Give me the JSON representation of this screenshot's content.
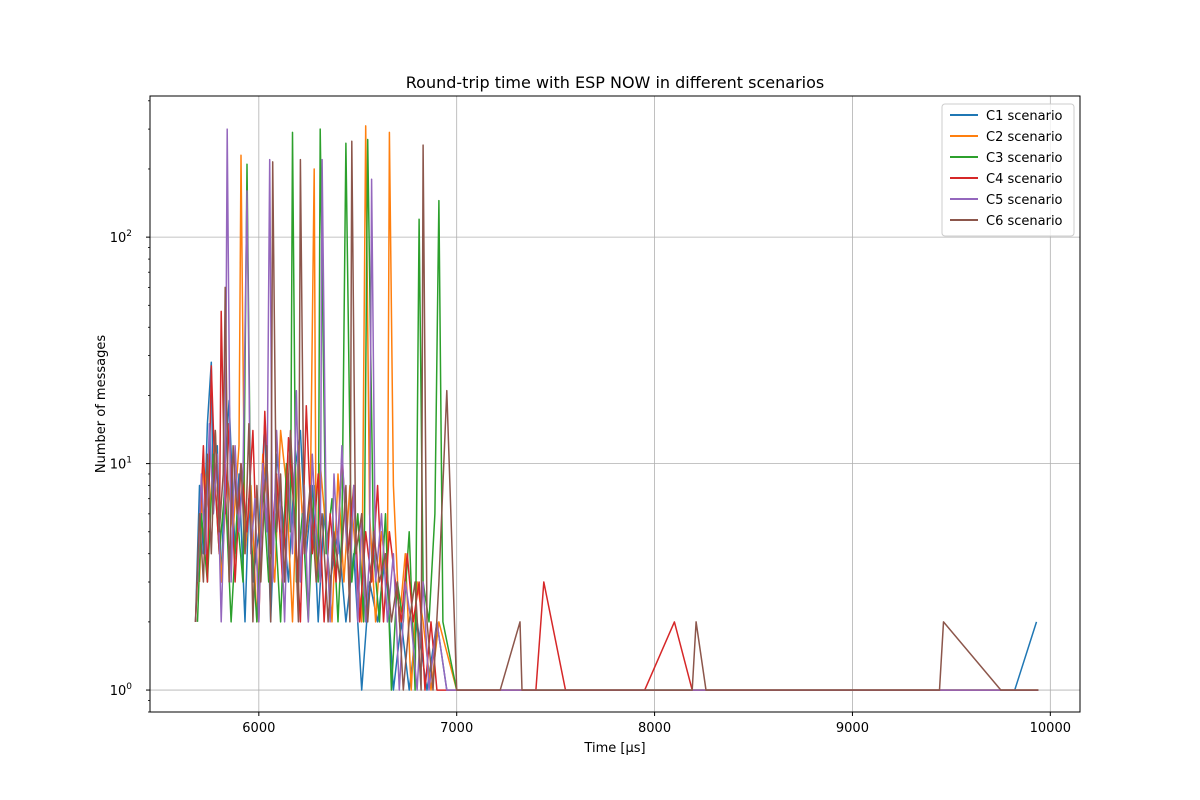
{
  "chart_data": {
    "type": "line",
    "title": "Round-trip time with ESP NOW in different scenarios",
    "xlabel": "Time [µs]",
    "ylabel": "Number of messages",
    "xlim": [
      5450,
      10150
    ],
    "ylim": [
      0.8,
      420
    ],
    "yscale": "log",
    "grid": true,
    "legend_position": "top-right",
    "xticks": [
      6000,
      7000,
      8000,
      9000,
      10000
    ],
    "xtick_labels": [
      "6000",
      "7000",
      "8000",
      "9000",
      "10000"
    ],
    "yticks": [
      {
        "value": 1,
        "base": "10",
        "exp": "0"
      },
      {
        "value": 10,
        "base": "10",
        "exp": "1"
      },
      {
        "value": 100,
        "base": "10",
        "exp": "2"
      }
    ],
    "series": [
      {
        "name": "C1 scenario",
        "color": "#1f77b4",
        "x": [
          5680,
          5700,
          5720,
          5740,
          5760,
          5770,
          5790,
          5810,
          5830,
          5850,
          5880,
          5900,
          5930,
          5950,
          5970,
          6000,
          6030,
          6060,
          6090,
          6120,
          6150,
          6180,
          6210,
          6240,
          6270,
          6300,
          6330,
          6360,
          6400,
          6440,
          6480,
          6520,
          6560,
          6600,
          6640,
          6680,
          6720,
          6760,
          6800,
          6850,
          6900,
          6950,
          7000,
          7500,
          8000,
          8500,
          9000,
          9500,
          9820,
          9930
        ],
        "y": [
          2,
          8,
          4,
          15,
          28,
          6,
          12,
          3,
          10,
          19,
          4,
          9,
          2,
          7,
          3,
          5,
          15,
          2,
          11,
          6,
          3,
          9,
          14,
          4,
          8,
          2,
          6,
          3,
          5,
          2,
          4,
          1,
          3,
          2,
          4,
          1,
          2,
          1,
          2,
          1,
          2,
          1,
          1,
          1,
          1,
          1,
          1,
          1,
          1,
          2
        ]
      },
      {
        "name": "C2 scenario",
        "color": "#ff7f0e",
        "x": [
          5700,
          5720,
          5750,
          5780,
          5810,
          5840,
          5870,
          5900,
          5910,
          5930,
          5960,
          5990,
          6020,
          6050,
          6080,
          6110,
          6140,
          6170,
          6200,
          6230,
          6260,
          6280,
          6290,
          6310,
          6340,
          6370,
          6400,
          6430,
          6460,
          6490,
          6520,
          6540,
          6560,
          6590,
          6620,
          6650,
          6660,
          6680,
          6710,
          6740,
          6770,
          6800,
          6830,
          6870,
          6910,
          7000,
          7500,
          8000,
          8500,
          9000,
          9500,
          9940
        ],
        "y": [
          3,
          10,
          6,
          14,
          3,
          9,
          5,
          12,
          230,
          4,
          8,
          2,
          11,
          6,
          3,
          14,
          8,
          2,
          12,
          4,
          7,
          200,
          3,
          10,
          5,
          2,
          9,
          3,
          8,
          4,
          2,
          310,
          6,
          2,
          5,
          3,
          290,
          8,
          2,
          4,
          1,
          3,
          2,
          1,
          2,
          1,
          1,
          1,
          1,
          1,
          1,
          1
        ]
      },
      {
        "name": "C3 scenario",
        "color": "#2ca02c",
        "x": [
          5690,
          5710,
          5740,
          5770,
          5800,
          5830,
          5860,
          5890,
          5920,
          5940,
          5960,
          5990,
          6020,
          6050,
          6080,
          6110,
          6140,
          6160,
          6170,
          6190,
          6220,
          6250,
          6280,
          6300,
          6310,
          6340,
          6370,
          6400,
          6420,
          6440,
          6470,
          6500,
          6530,
          6550,
          6580,
          6610,
          6640,
          6670,
          6700,
          6730,
          6760,
          6790,
          6810,
          6830,
          6860,
          6890,
          6910,
          6930,
          7000,
          7500,
          8000,
          8500,
          9000,
          9500,
          9940
        ],
        "y": [
          2,
          6,
          3,
          11,
          4,
          8,
          2,
          6,
          3,
          210,
          5,
          2,
          8,
          3,
          6,
          2,
          10,
          5,
          290,
          3,
          6,
          2,
          8,
          3,
          300,
          4,
          7,
          2,
          5,
          260,
          3,
          6,
          2,
          270,
          4,
          2,
          6,
          1,
          3,
          2,
          5,
          1,
          120,
          3,
          2,
          6,
          145,
          2,
          1,
          1,
          1,
          1,
          1,
          1,
          1
        ]
      },
      {
        "name": "C4 scenario",
        "color": "#d62728",
        "x": [
          5680,
          5700,
          5720,
          5740,
          5760,
          5780,
          5800,
          5810,
          5830,
          5850,
          5880,
          5910,
          5940,
          5970,
          6000,
          6030,
          6060,
          6090,
          6120,
          6150,
          6180,
          6210,
          6240,
          6270,
          6300,
          6330,
          6360,
          6390,
          6420,
          6450,
          6480,
          6510,
          6540,
          6570,
          6600,
          6630,
          6660,
          6690,
          6720,
          6750,
          6780,
          6810,
          6840,
          6870,
          6900,
          6950,
          7000,
          7200,
          7400,
          7440,
          7550,
          7700,
          7950,
          8100,
          8190,
          8300,
          8600,
          9000,
          9500,
          9940
        ],
        "y": [
          2,
          5,
          12,
          3,
          27,
          8,
          4,
          47,
          6,
          15,
          3,
          10,
          5,
          14,
          2,
          17,
          4,
          9,
          3,
          13,
          6,
          2,
          18,
          4,
          9,
          2,
          6,
          3,
          11,
          4,
          8,
          2,
          5,
          3,
          8,
          2,
          5,
          3,
          2,
          4,
          2,
          3,
          1,
          2,
          1,
          1,
          1,
          1,
          1,
          3,
          1,
          1,
          1,
          2,
          1,
          1,
          1,
          1,
          1,
          1
        ]
      },
      {
        "name": "C5 scenario",
        "color": "#9467bd",
        "x": [
          5690,
          5710,
          5730,
          5750,
          5770,
          5790,
          5810,
          5830,
          5840,
          5860,
          5880,
          5900,
          5920,
          5940,
          5960,
          5980,
          6000,
          6020,
          6040,
          6055,
          6070,
          6090,
          6110,
          6130,
          6150,
          6170,
          6190,
          6210,
          6230,
          6250,
          6270,
          6290,
          6310,
          6320,
          6340,
          6360,
          6380,
          6400,
          6420,
          6440,
          6460,
          6480,
          6500,
          6520,
          6540,
          6560,
          6570,
          6590,
          6620,
          6650,
          6680,
          6710,
          6740,
          6770,
          6800,
          6830,
          6860,
          6900,
          6950,
          7000,
          7500,
          8000,
          8500,
          9000,
          9500,
          9940
        ],
        "y": [
          3,
          9,
          4,
          15,
          6,
          11,
          2,
          8,
          300,
          3,
          12,
          5,
          9,
          160,
          4,
          7,
          2,
          10,
          5,
          220,
          3,
          14,
          6,
          2,
          9,
          4,
          21,
          3,
          8,
          2,
          11,
          5,
          3,
          220,
          6,
          2,
          9,
          4,
          12,
          5,
          3,
          8,
          2,
          6,
          2,
          4,
          180,
          3,
          6,
          2,
          4,
          1,
          3,
          2,
          1,
          3,
          1,
          2,
          1,
          1,
          1,
          1,
          1,
          1,
          1,
          1
        ]
      },
      {
        "name": "C6 scenario",
        "color": "#8c564b",
        "x": [
          5680,
          5700,
          5720,
          5740,
          5760,
          5780,
          5800,
          5820,
          5830,
          5850,
          5870,
          5890,
          5910,
          5930,
          5950,
          5970,
          5990,
          6010,
          6040,
          6060,
          6070,
          6090,
          6110,
          6130,
          6160,
          6180,
          6200,
          6210,
          6230,
          6260,
          6290,
          6320,
          6350,
          6380,
          6410,
          6440,
          6460,
          6470,
          6490,
          6520,
          6550,
          6580,
          6610,
          6640,
          6670,
          6700,
          6730,
          6760,
          6790,
          6820,
          6830,
          6850,
          6880,
          6910,
          6950,
          7000,
          7220,
          7320,
          7330,
          7440,
          7700,
          8000,
          8190,
          8210,
          8260,
          8600,
          9000,
          9440,
          9460,
          9750,
          9940
        ],
        "y": [
          2,
          6,
          3,
          11,
          4,
          14,
          5,
          9,
          60,
          3,
          12,
          6,
          10,
          4,
          15,
          2,
          8,
          3,
          12,
          2,
          215,
          5,
          9,
          3,
          14,
          6,
          2,
          220,
          4,
          8,
          3,
          6,
          2,
          5,
          3,
          8,
          2,
          265,
          4,
          6,
          2,
          5,
          3,
          4,
          2,
          3,
          1,
          2,
          3,
          1,
          255,
          2,
          1,
          3,
          21,
          1,
          1,
          2,
          1,
          1,
          1,
          1,
          1,
          2,
          1,
          1,
          1,
          1,
          2,
          1,
          1
        ]
      }
    ]
  }
}
